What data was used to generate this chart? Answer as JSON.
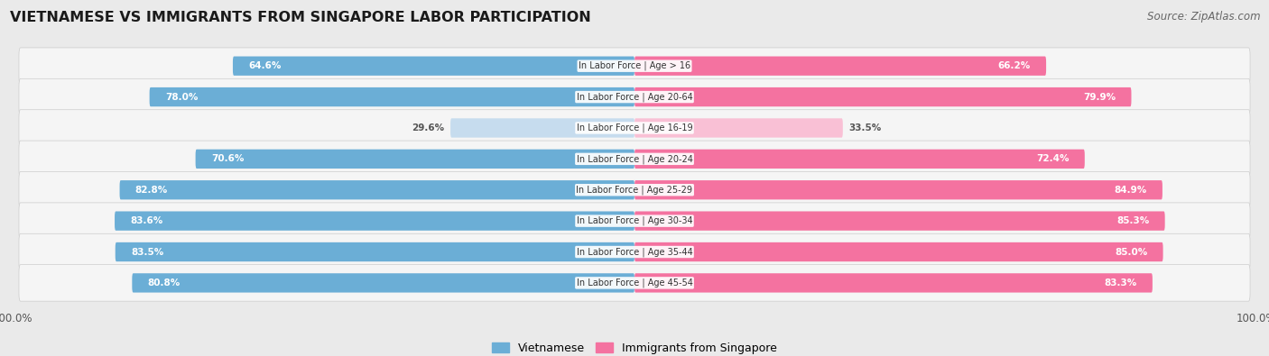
{
  "title": "VIETNAMESE VS IMMIGRANTS FROM SINGAPORE LABOR PARTICIPATION",
  "source": "Source: ZipAtlas.com",
  "categories": [
    "In Labor Force | Age > 16",
    "In Labor Force | Age 20-64",
    "In Labor Force | Age 16-19",
    "In Labor Force | Age 20-24",
    "In Labor Force | Age 25-29",
    "In Labor Force | Age 30-34",
    "In Labor Force | Age 35-44",
    "In Labor Force | Age 45-54"
  ],
  "vietnamese": [
    64.6,
    78.0,
    29.6,
    70.6,
    82.8,
    83.6,
    83.5,
    80.8
  ],
  "singapore": [
    66.2,
    79.9,
    33.5,
    72.4,
    84.9,
    85.3,
    85.0,
    83.3
  ],
  "viet_color": "#6BAED6",
  "sing_color": "#F472A0",
  "viet_color_light": "#C6DCEE",
  "sing_color_light": "#F9C0D5",
  "bg_color": "#EAEAEA",
  "row_bg": "#F5F5F5",
  "max_val": 100.0,
  "bar_height": 0.62,
  "legend_viet": "Vietnamese",
  "legend_sing": "Immigrants from Singapore"
}
